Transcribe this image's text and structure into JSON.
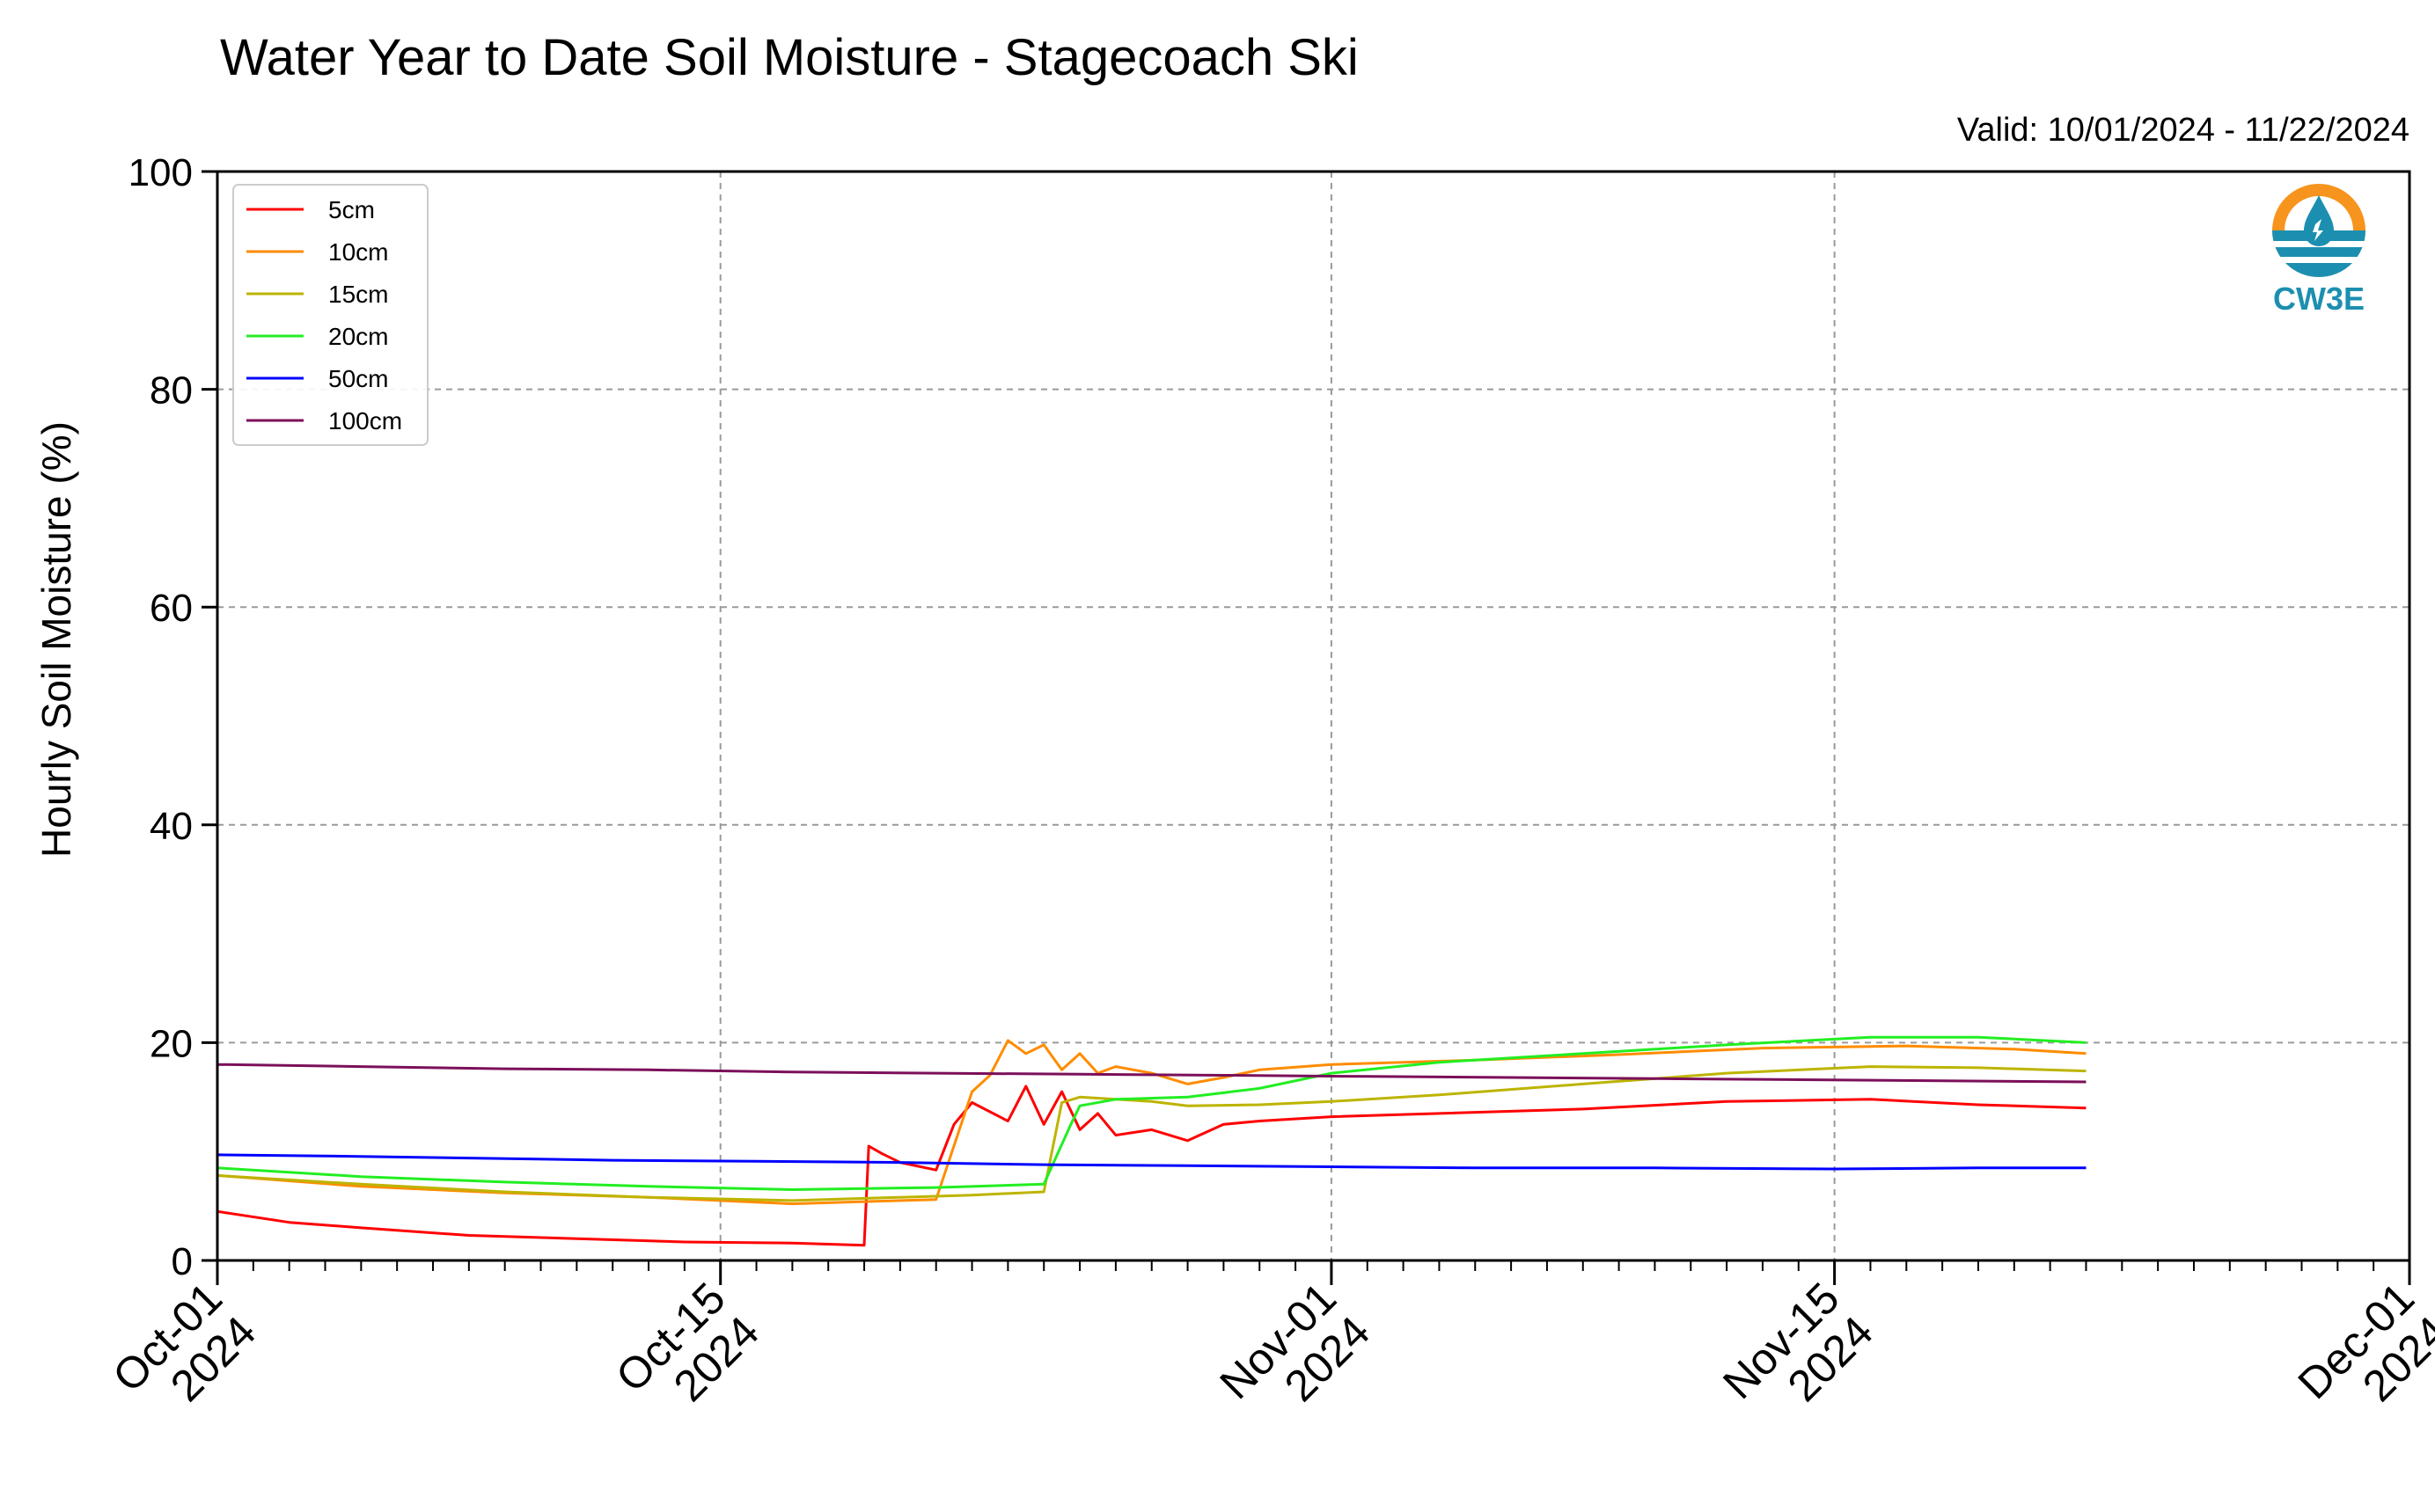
{
  "chart_data": {
    "type": "line",
    "title": "Water Year to Date Soil Moisture - Stagecoach Ski",
    "subtitle": "Valid: 10/01/2024 - 11/22/2024",
    "xlabel": "",
    "ylabel": "Hourly Soil Moisture (%)",
    "ylim": [
      0,
      100
    ],
    "xlim": [
      "2024-10-01",
      "2024-12-01"
    ],
    "grid": true,
    "legend_position": "top-left",
    "x_ticks": [
      {
        "date": "2024-10-01",
        "line1": "Oct-01",
        "line2": "2024"
      },
      {
        "date": "2024-10-15",
        "line1": "Oct-15",
        "line2": "2024"
      },
      {
        "date": "2024-11-01",
        "line1": "Nov-01",
        "line2": "2024"
      },
      {
        "date": "2024-11-15",
        "line1": "Nov-15",
        "line2": "2024"
      },
      {
        "date": "2024-12-01",
        "line1": "Dec-01",
        "line2": "2024"
      }
    ],
    "y_ticks": [
      "0",
      "20",
      "40",
      "60",
      "80",
      "100"
    ],
    "series": [
      {
        "name": "5cm",
        "color": "#ff0000",
        "x": [
          "2024-10-01",
          "2024-10-03",
          "2024-10-05",
          "2024-10-08",
          "2024-10-11",
          "2024-10-14",
          "2024-10-17",
          "2024-10-19",
          "2024-10-19T03",
          "2024-10-19T12",
          "2024-10-20",
          "2024-10-21",
          "2024-10-21T12",
          "2024-10-22",
          "2024-10-23",
          "2024-10-23T12",
          "2024-10-24",
          "2024-10-24T12",
          "2024-10-25",
          "2024-10-25T12",
          "2024-10-26",
          "2024-10-27",
          "2024-10-28",
          "2024-10-29",
          "2024-10-30",
          "2024-11-01",
          "2024-11-04",
          "2024-11-08",
          "2024-11-12",
          "2024-11-16",
          "2024-11-19",
          "2024-11-22"
        ],
        "y": [
          4.5,
          3.5,
          3.0,
          2.3,
          2.0,
          1.7,
          1.6,
          1.4,
          10.5,
          9.8,
          9.0,
          8.3,
          12.5,
          14.5,
          12.8,
          16.0,
          12.5,
          15.5,
          12.0,
          13.5,
          11.5,
          12.0,
          11.0,
          12.5,
          12.8,
          13.2,
          13.5,
          13.9,
          14.6,
          14.8,
          14.3,
          14.0
        ]
      },
      {
        "name": "10cm",
        "color": "#ff8c00",
        "x": [
          "2024-10-01",
          "2024-10-05",
          "2024-10-09",
          "2024-10-13",
          "2024-10-17",
          "2024-10-19",
          "2024-10-21",
          "2024-10-22",
          "2024-10-22T12",
          "2024-10-23",
          "2024-10-23T12",
          "2024-10-24",
          "2024-10-24T12",
          "2024-10-25",
          "2024-10-25T12",
          "2024-10-26",
          "2024-10-27",
          "2024-10-28",
          "2024-10-29",
          "2024-10-30",
          "2024-11-01",
          "2024-11-05",
          "2024-11-09",
          "2024-11-13",
          "2024-11-17",
          "2024-11-20",
          "2024-11-22"
        ],
        "y": [
          7.8,
          6.8,
          6.2,
          5.8,
          5.2,
          5.4,
          5.6,
          15.5,
          17.0,
          20.2,
          19.0,
          19.8,
          17.5,
          19.0,
          17.2,
          17.8,
          17.2,
          16.2,
          16.8,
          17.5,
          18.0,
          18.4,
          18.9,
          19.5,
          19.7,
          19.4,
          19.0
        ]
      },
      {
        "name": "15cm",
        "color": "#bdb400",
        "x": [
          "2024-10-01",
          "2024-10-05",
          "2024-10-09",
          "2024-10-13",
          "2024-10-17",
          "2024-10-20",
          "2024-10-22",
          "2024-10-24",
          "2024-10-24T12",
          "2024-10-25",
          "2024-10-26",
          "2024-10-27",
          "2024-10-28",
          "2024-10-30",
          "2024-11-01",
          "2024-11-04",
          "2024-11-08",
          "2024-11-12",
          "2024-11-16",
          "2024-11-19",
          "2024-11-22"
        ],
        "y": [
          7.8,
          7.0,
          6.3,
          5.8,
          5.5,
          5.8,
          6.0,
          6.3,
          14.5,
          15.0,
          14.8,
          14.6,
          14.2,
          14.3,
          14.6,
          15.2,
          16.2,
          17.2,
          17.8,
          17.7,
          17.4
        ]
      },
      {
        "name": "20cm",
        "color": "#22ee22",
        "x": [
          "2024-10-01",
          "2024-10-05",
          "2024-10-09",
          "2024-10-13",
          "2024-10-17",
          "2024-10-21",
          "2024-10-24",
          "2024-10-24T18",
          "2024-10-25",
          "2024-10-26",
          "2024-10-28",
          "2024-10-30",
          "2024-11-01",
          "2024-11-04",
          "2024-11-08",
          "2024-11-12",
          "2024-11-16",
          "2024-11-19",
          "2024-11-22"
        ],
        "y": [
          8.5,
          7.7,
          7.2,
          6.8,
          6.5,
          6.7,
          7.0,
          12.5,
          14.2,
          14.8,
          15.0,
          15.8,
          17.2,
          18.2,
          19.0,
          19.8,
          20.5,
          20.5,
          20.0
        ]
      },
      {
        "name": "50cm",
        "color": "#0000ff",
        "x": [
          "2024-10-01",
          "2024-10-04",
          "2024-10-08",
          "2024-10-12",
          "2024-10-16",
          "2024-10-20",
          "2024-10-24",
          "2024-10-28",
          "2024-11-01",
          "2024-11-05",
          "2024-11-10",
          "2024-11-15",
          "2024-11-19",
          "2024-11-22"
        ],
        "y": [
          9.7,
          9.6,
          9.4,
          9.2,
          9.1,
          9.0,
          8.8,
          8.7,
          8.6,
          8.5,
          8.5,
          8.4,
          8.5,
          8.5
        ]
      },
      {
        "name": "100cm",
        "color": "#7b0f5a",
        "x": [
          "2024-10-01",
          "2024-10-05",
          "2024-10-09",
          "2024-10-13",
          "2024-10-17",
          "2024-10-21",
          "2024-10-25",
          "2024-10-29",
          "2024-11-02",
          "2024-11-06",
          "2024-11-10",
          "2024-11-14",
          "2024-11-18",
          "2024-11-22"
        ],
        "y": [
          18.0,
          17.8,
          17.6,
          17.5,
          17.3,
          17.2,
          17.1,
          17.0,
          16.9,
          16.8,
          16.7,
          16.6,
          16.5,
          16.4
        ]
      }
    ]
  },
  "logo": {
    "text": "CW3E",
    "color_orange": "#f7941d",
    "color_teal": "#1c8fb0"
  }
}
